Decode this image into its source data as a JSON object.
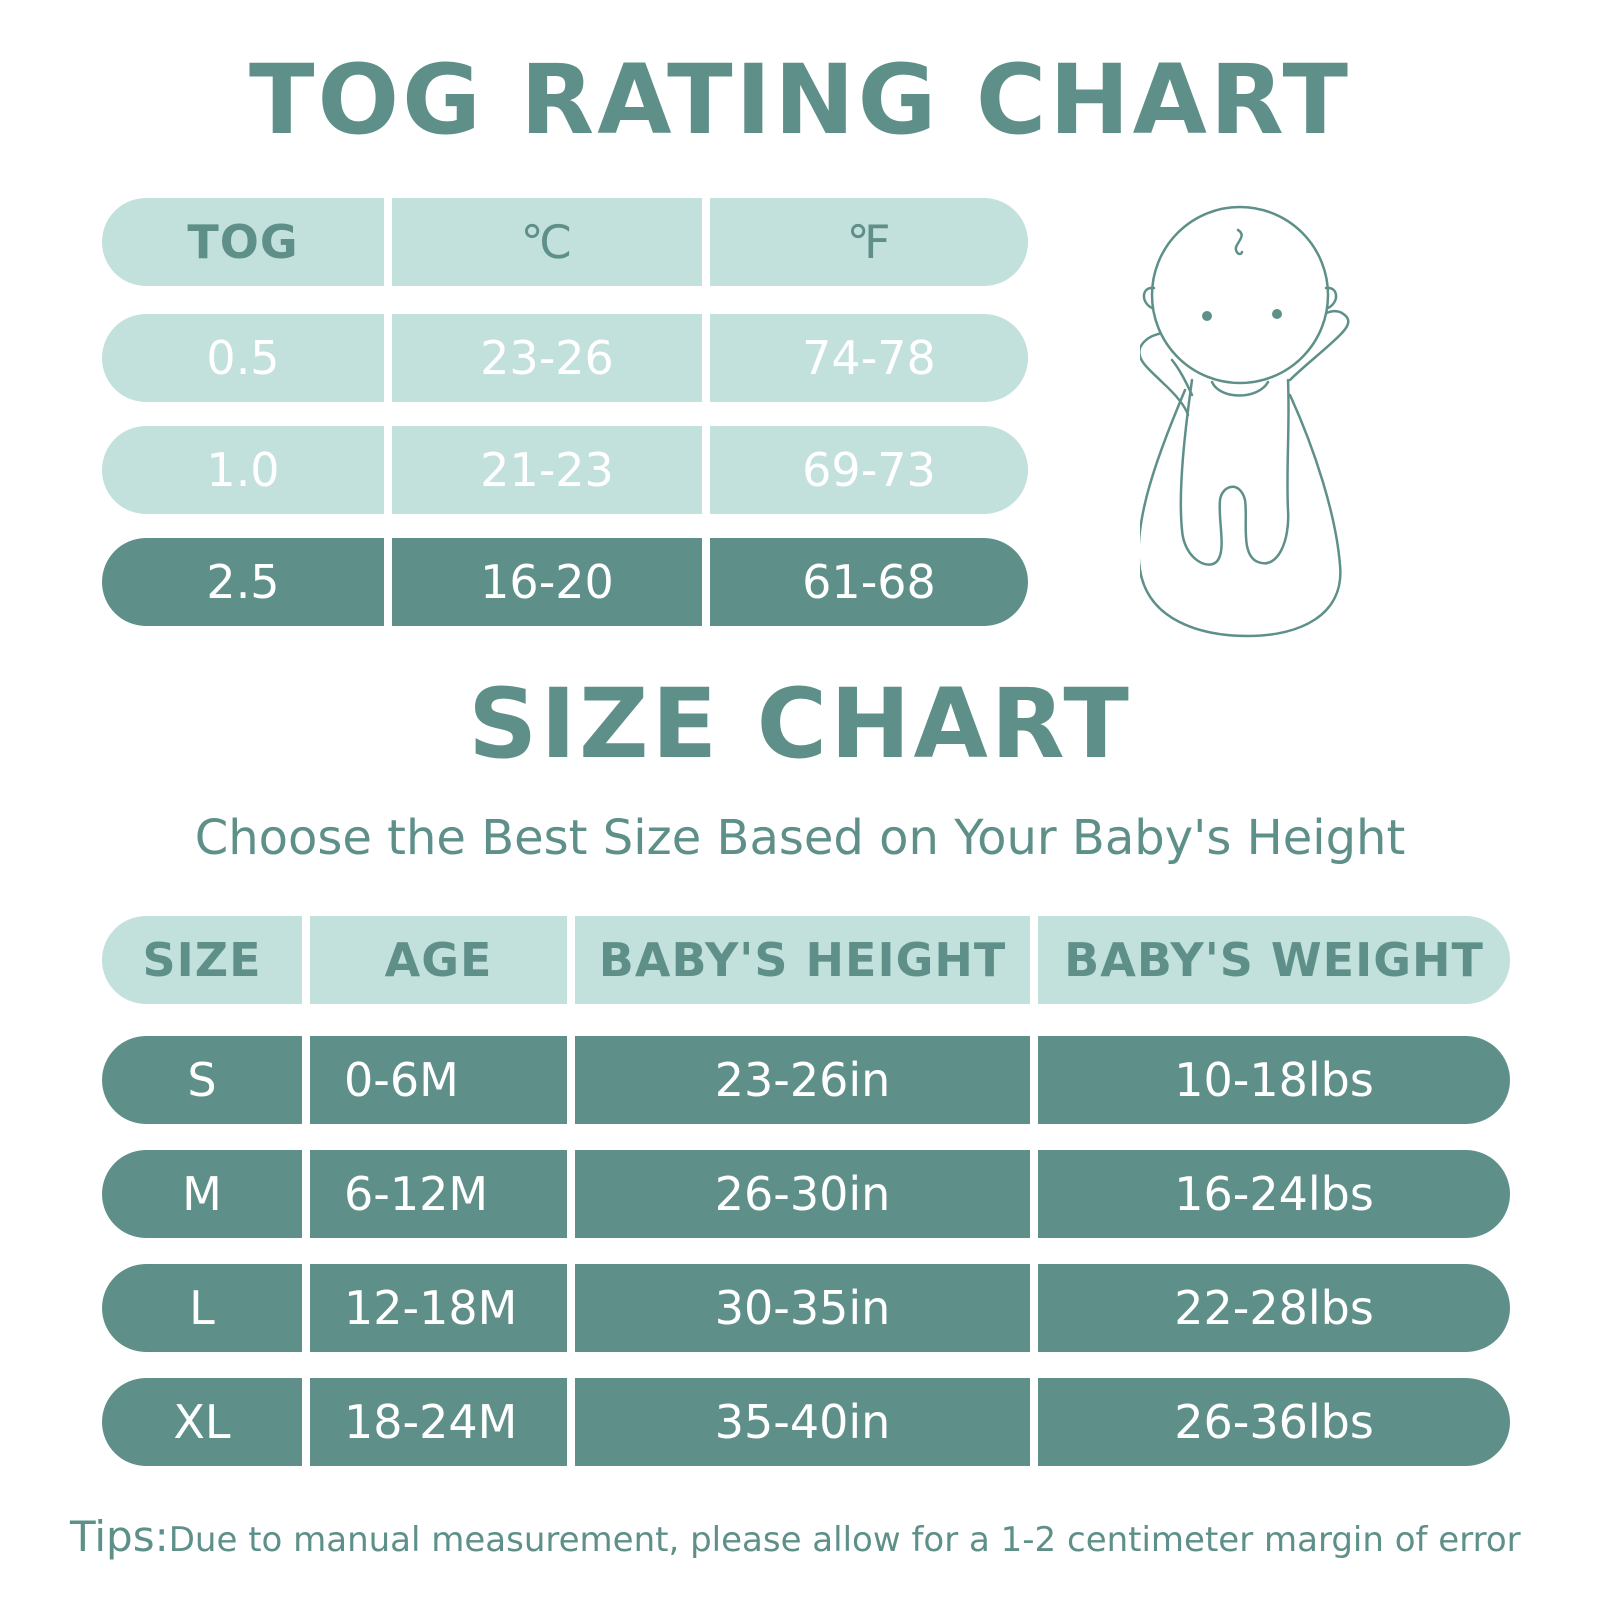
{
  "tog_chart": {
    "title": "TOG RATING CHART",
    "headers": [
      "TOG",
      "℃",
      "℉"
    ],
    "rows": [
      {
        "tog": "0.5",
        "celsius": "23-26",
        "fahrenheit": "74-78"
      },
      {
        "tog": "1.0",
        "celsius": "21-23",
        "fahrenheit": "69-73"
      },
      {
        "tog": "2.5",
        "celsius": "16-20",
        "fahrenheit": "61-68"
      }
    ],
    "highlighted_row": "2.5"
  },
  "size_chart": {
    "title": "SIZE CHART",
    "subtitle": "Choose the Best Size Based on Your Baby's Height",
    "headers": [
      "SIZE",
      "AGE",
      "BABY'S HEIGHT",
      "BABY'S WEIGHT"
    ],
    "rows": [
      {
        "size": "S",
        "age": "0-6M",
        "height": "23-26in",
        "weight": "10-18lbs"
      },
      {
        "size": "M",
        "age": "6-12M",
        "height": "26-30in",
        "weight": "16-24lbs"
      },
      {
        "size": "L",
        "age": "12-18M",
        "height": "30-35in",
        "weight": "22-28lbs"
      },
      {
        "size": "XL",
        "age": "18-24M",
        "height": "35-40in",
        "weight": "26-36lbs"
      }
    ]
  },
  "tips": {
    "label": "Tips:",
    "text": "Due to manual measurement, please allow for a 1-2 centimeter margin of error"
  },
  "illustration": {
    "icon": "baby-sleep-sack-icon"
  },
  "colors": {
    "primary": "#5e9089",
    "light": "#c2e0dc",
    "background": "#ffffff"
  }
}
